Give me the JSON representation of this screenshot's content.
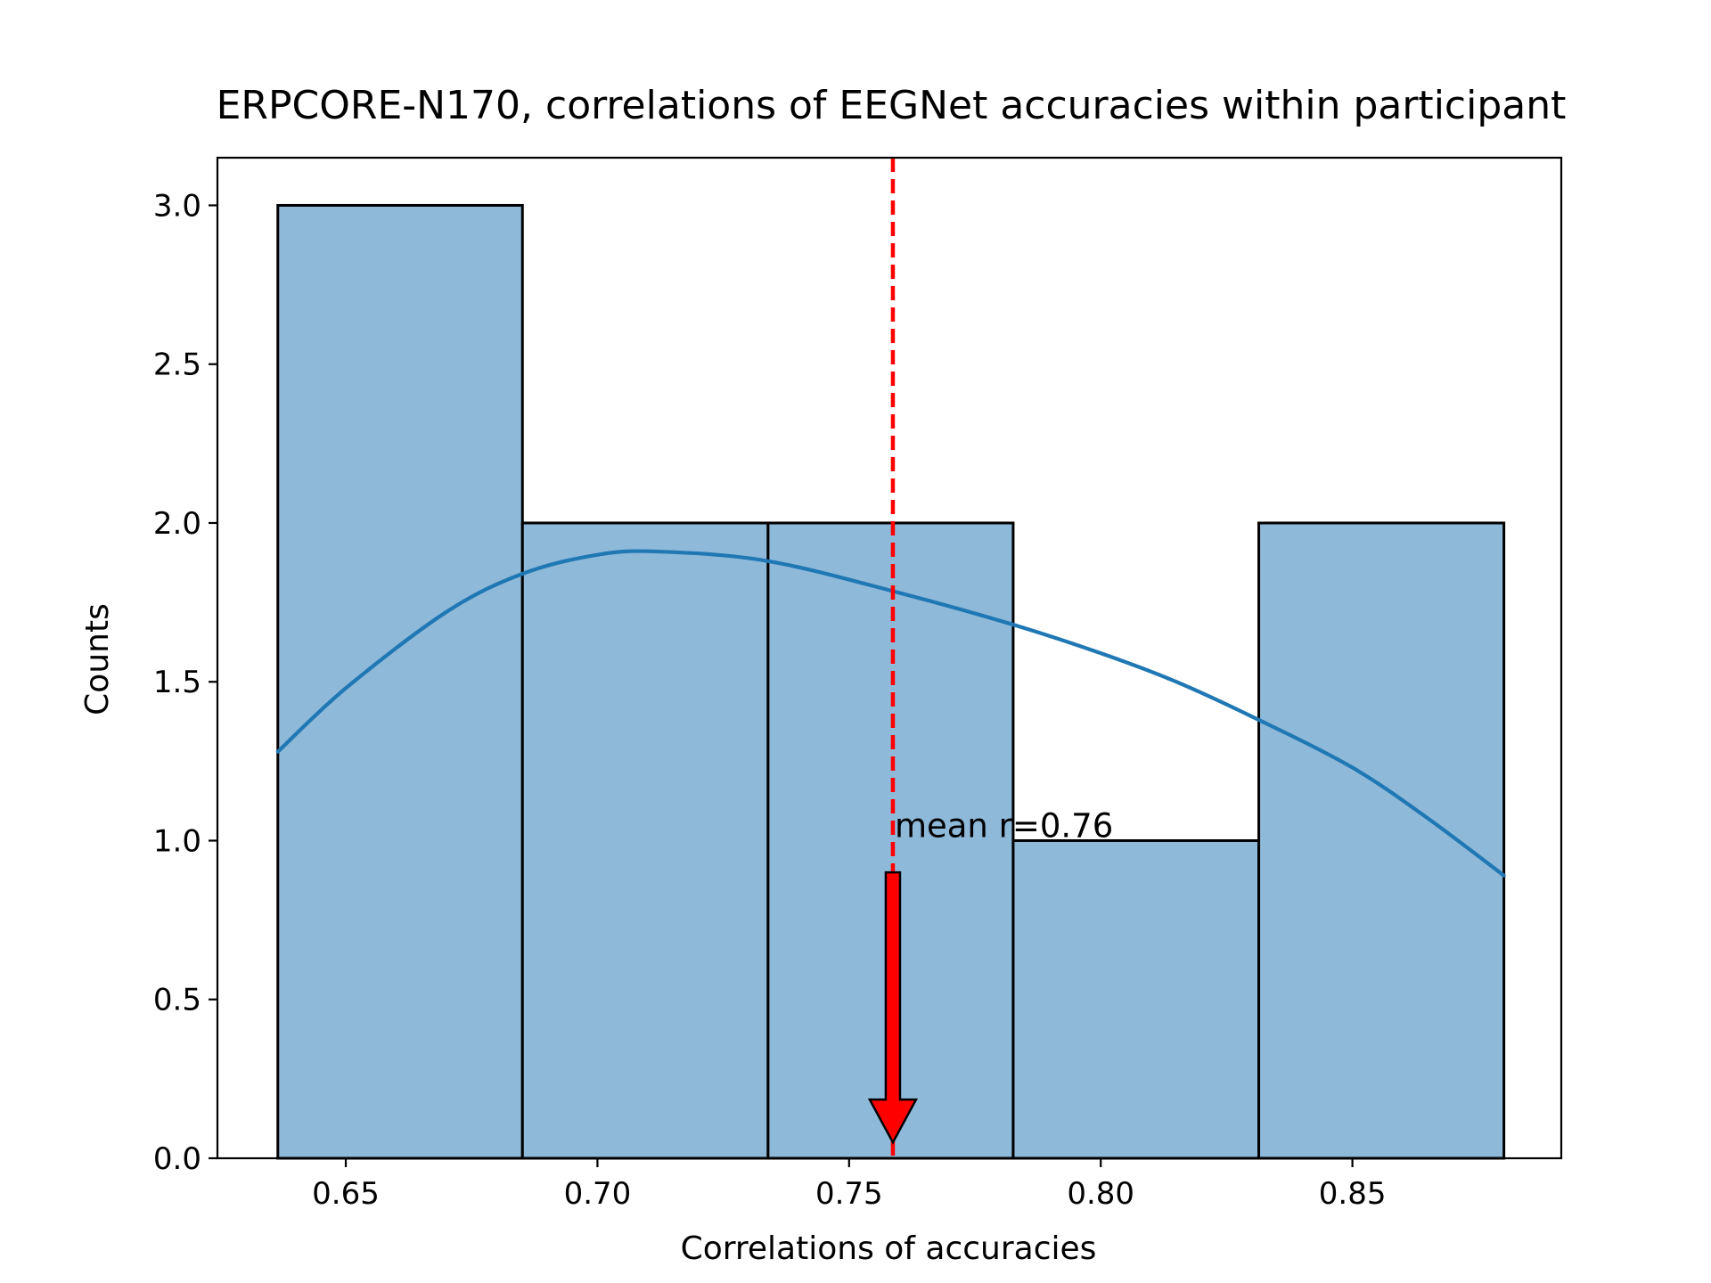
{
  "chart_data": {
    "type": "bar",
    "title": "ERPCORE-N170, correlations of EEGNet accuracies within participant",
    "xlabel": "Correlations of accuracies",
    "ylabel": "Counts",
    "xlim": [
      0.6245,
      0.8915
    ],
    "ylim": [
      0,
      3.15
    ],
    "xticks": [
      0.65,
      0.7,
      0.75,
      0.8,
      0.85
    ],
    "xtick_labels": [
      "0.65",
      "0.70",
      "0.75",
      "0.80",
      "0.85"
    ],
    "yticks": [
      0.0,
      0.5,
      1.0,
      1.5,
      2.0,
      2.5,
      3.0
    ],
    "ytick_labels": [
      "0.0",
      "0.5",
      "1.0",
      "1.5",
      "2.0",
      "2.5",
      "3.0"
    ],
    "bins": [
      {
        "start": 0.6365,
        "end": 0.6851,
        "count": 3
      },
      {
        "start": 0.6851,
        "end": 0.7339,
        "count": 2
      },
      {
        "start": 0.7339,
        "end": 0.7826,
        "count": 2
      },
      {
        "start": 0.7826,
        "end": 0.8314,
        "count": 1
      },
      {
        "start": 0.8314,
        "end": 0.8801,
        "count": 2
      }
    ],
    "kde": [
      {
        "x": 0.6365,
        "y": 1.28
      },
      {
        "x": 0.65,
        "y": 1.48
      },
      {
        "x": 0.67,
        "y": 1.72
      },
      {
        "x": 0.6851,
        "y": 1.84
      },
      {
        "x": 0.7,
        "y": 1.9
      },
      {
        "x": 0.712,
        "y": 1.91
      },
      {
        "x": 0.7339,
        "y": 1.88
      },
      {
        "x": 0.76,
        "y": 1.78
      },
      {
        "x": 0.7826,
        "y": 1.68
      },
      {
        "x": 0.8,
        "y": 1.59
      },
      {
        "x": 0.815,
        "y": 1.5
      },
      {
        "x": 0.8314,
        "y": 1.38
      },
      {
        "x": 0.85,
        "y": 1.23
      },
      {
        "x": 0.865,
        "y": 1.07
      },
      {
        "x": 0.8801,
        "y": 0.89
      }
    ],
    "mean_line": {
      "x": 0.7587,
      "label": "mean r=0.76",
      "color": "#ff0000"
    },
    "arrow": {
      "x": 0.7587,
      "y_start": 0.9,
      "y_end": 0.05,
      "color": "#ff0000"
    },
    "colors": {
      "bar_fill": "#8eb9d9",
      "bar_edge": "#000000",
      "kde": "#1f77b4"
    },
    "grid": false,
    "legend": false
  }
}
